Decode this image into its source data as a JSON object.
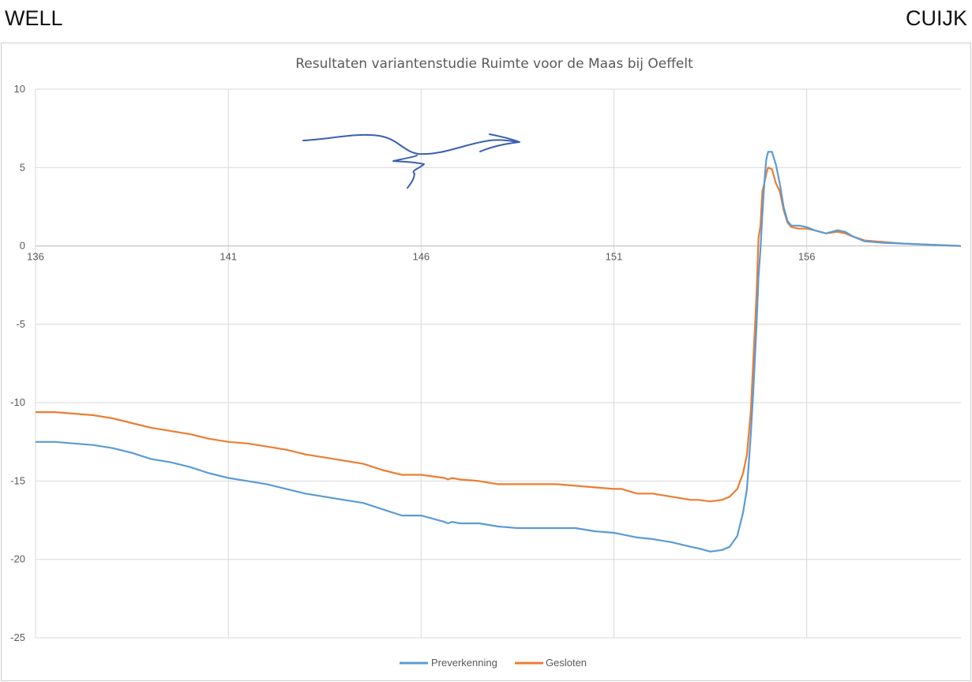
{
  "labels": {
    "left": "WELL",
    "right": "CUIJK"
  },
  "chart_data": {
    "type": "line",
    "title": "Resultaten variantenstudie Ruimte voor de Maas bij Oeffelt",
    "xlabel": "",
    "ylabel": "",
    "xlim": [
      136,
      160
    ],
    "ylim": [
      -25,
      10
    ],
    "xticks": [
      136,
      141,
      146,
      151,
      156
    ],
    "yticks": [
      10,
      5,
      0,
      -5,
      -10,
      -15,
      -20,
      -25
    ],
    "grid": true,
    "legend_position": "bottom",
    "series": [
      {
        "name": "Preverkenning",
        "color": "#5b9bd5",
        "x": [
          136,
          136.5,
          137.5,
          138,
          138.5,
          139,
          139.5,
          140,
          140.5,
          141,
          141.5,
          142,
          142.5,
          143,
          143.5,
          144,
          144.5,
          145,
          145.5,
          146,
          146.3,
          146.6,
          146.7,
          146.8,
          147,
          147.5,
          148,
          148.5,
          149,
          149.5,
          150,
          150.5,
          151,
          151.2,
          151.6,
          152,
          152.5,
          153,
          153.2,
          153.5,
          153.8,
          154,
          154.2,
          154.35,
          154.45,
          154.55,
          154.62,
          154.7,
          154.75,
          154.8,
          154.85,
          154.9,
          154.95,
          155.0,
          155.1,
          155.2,
          155.3,
          155.4,
          155.5,
          155.6,
          155.8,
          156,
          156.2,
          156.5,
          156.8,
          157,
          157.2,
          157.5,
          158,
          158.5,
          159,
          159.5,
          160
        ],
        "y": [
          -12.5,
          -12.5,
          -12.7,
          -12.9,
          -13.2,
          -13.6,
          -13.8,
          -14.1,
          -14.5,
          -14.8,
          -15.0,
          -15.2,
          -15.5,
          -15.8,
          -16.0,
          -16.2,
          -16.4,
          -16.8,
          -17.2,
          -17.2,
          -17.4,
          -17.6,
          -17.7,
          -17.6,
          -17.7,
          -17.7,
          -17.9,
          -18.0,
          -18.0,
          -18.0,
          -18.0,
          -18.2,
          -18.3,
          -18.4,
          -18.6,
          -18.7,
          -18.9,
          -19.2,
          -19.3,
          -19.5,
          -19.4,
          -19.2,
          -18.5,
          -17,
          -15.5,
          -12,
          -9,
          -5,
          -2,
          -0.2,
          2,
          4,
          5.5,
          6.0,
          6.0,
          5.2,
          4.0,
          2.5,
          1.6,
          1.3,
          1.3,
          1.2,
          1.0,
          0.8,
          1.0,
          0.9,
          0.6,
          0.3,
          0.2,
          0.15,
          0.1,
          0.05,
          0.0
        ]
      },
      {
        "name": "Gesloten",
        "color": "#ed7d31",
        "x": [
          136,
          136.5,
          137.5,
          138,
          138.5,
          139,
          139.5,
          140,
          140.5,
          141,
          141.5,
          142,
          142.5,
          143,
          143.5,
          144,
          144.5,
          145,
          145.5,
          146,
          146.3,
          146.6,
          146.7,
          146.8,
          147,
          147.5,
          148,
          148.5,
          149,
          149.5,
          150,
          150.5,
          151,
          151.2,
          151.6,
          152,
          152.5,
          153,
          153.2,
          153.5,
          153.8,
          154,
          154.2,
          154.35,
          154.45,
          154.55,
          154.62,
          154.7,
          154.75,
          154.8,
          154.85,
          154.9,
          154.95,
          155.0,
          155.1,
          155.2,
          155.3,
          155.4,
          155.5,
          155.6,
          155.8,
          156,
          156.2,
          156.5,
          156.8,
          157,
          157.2,
          157.5,
          158,
          158.5,
          159,
          159.5,
          160
        ],
        "y": [
          -10.6,
          -10.6,
          -10.8,
          -11.0,
          -11.3,
          -11.6,
          -11.8,
          -12.0,
          -12.3,
          -12.5,
          -12.6,
          -12.8,
          -13.0,
          -13.3,
          -13.5,
          -13.7,
          -13.9,
          -14.3,
          -14.6,
          -14.6,
          -14.7,
          -14.8,
          -14.9,
          -14.8,
          -14.9,
          -15.0,
          -15.2,
          -15.2,
          -15.2,
          -15.2,
          -15.3,
          -15.4,
          -15.5,
          -15.5,
          -15.8,
          -15.8,
          -16.0,
          -16.2,
          -16.2,
          -16.3,
          -16.2,
          -16.0,
          -15.5,
          -14.5,
          -13.3,
          -10.5,
          -7,
          -3,
          0.5,
          1.3,
          3.5,
          4.0,
          4.6,
          5.0,
          4.9,
          4.0,
          3.5,
          2.3,
          1.5,
          1.2,
          1.1,
          1.1,
          1.0,
          0.8,
          0.9,
          0.8,
          0.6,
          0.35,
          0.25,
          0.15,
          0.1,
          0.05,
          0.0
        ]
      }
    ]
  }
}
